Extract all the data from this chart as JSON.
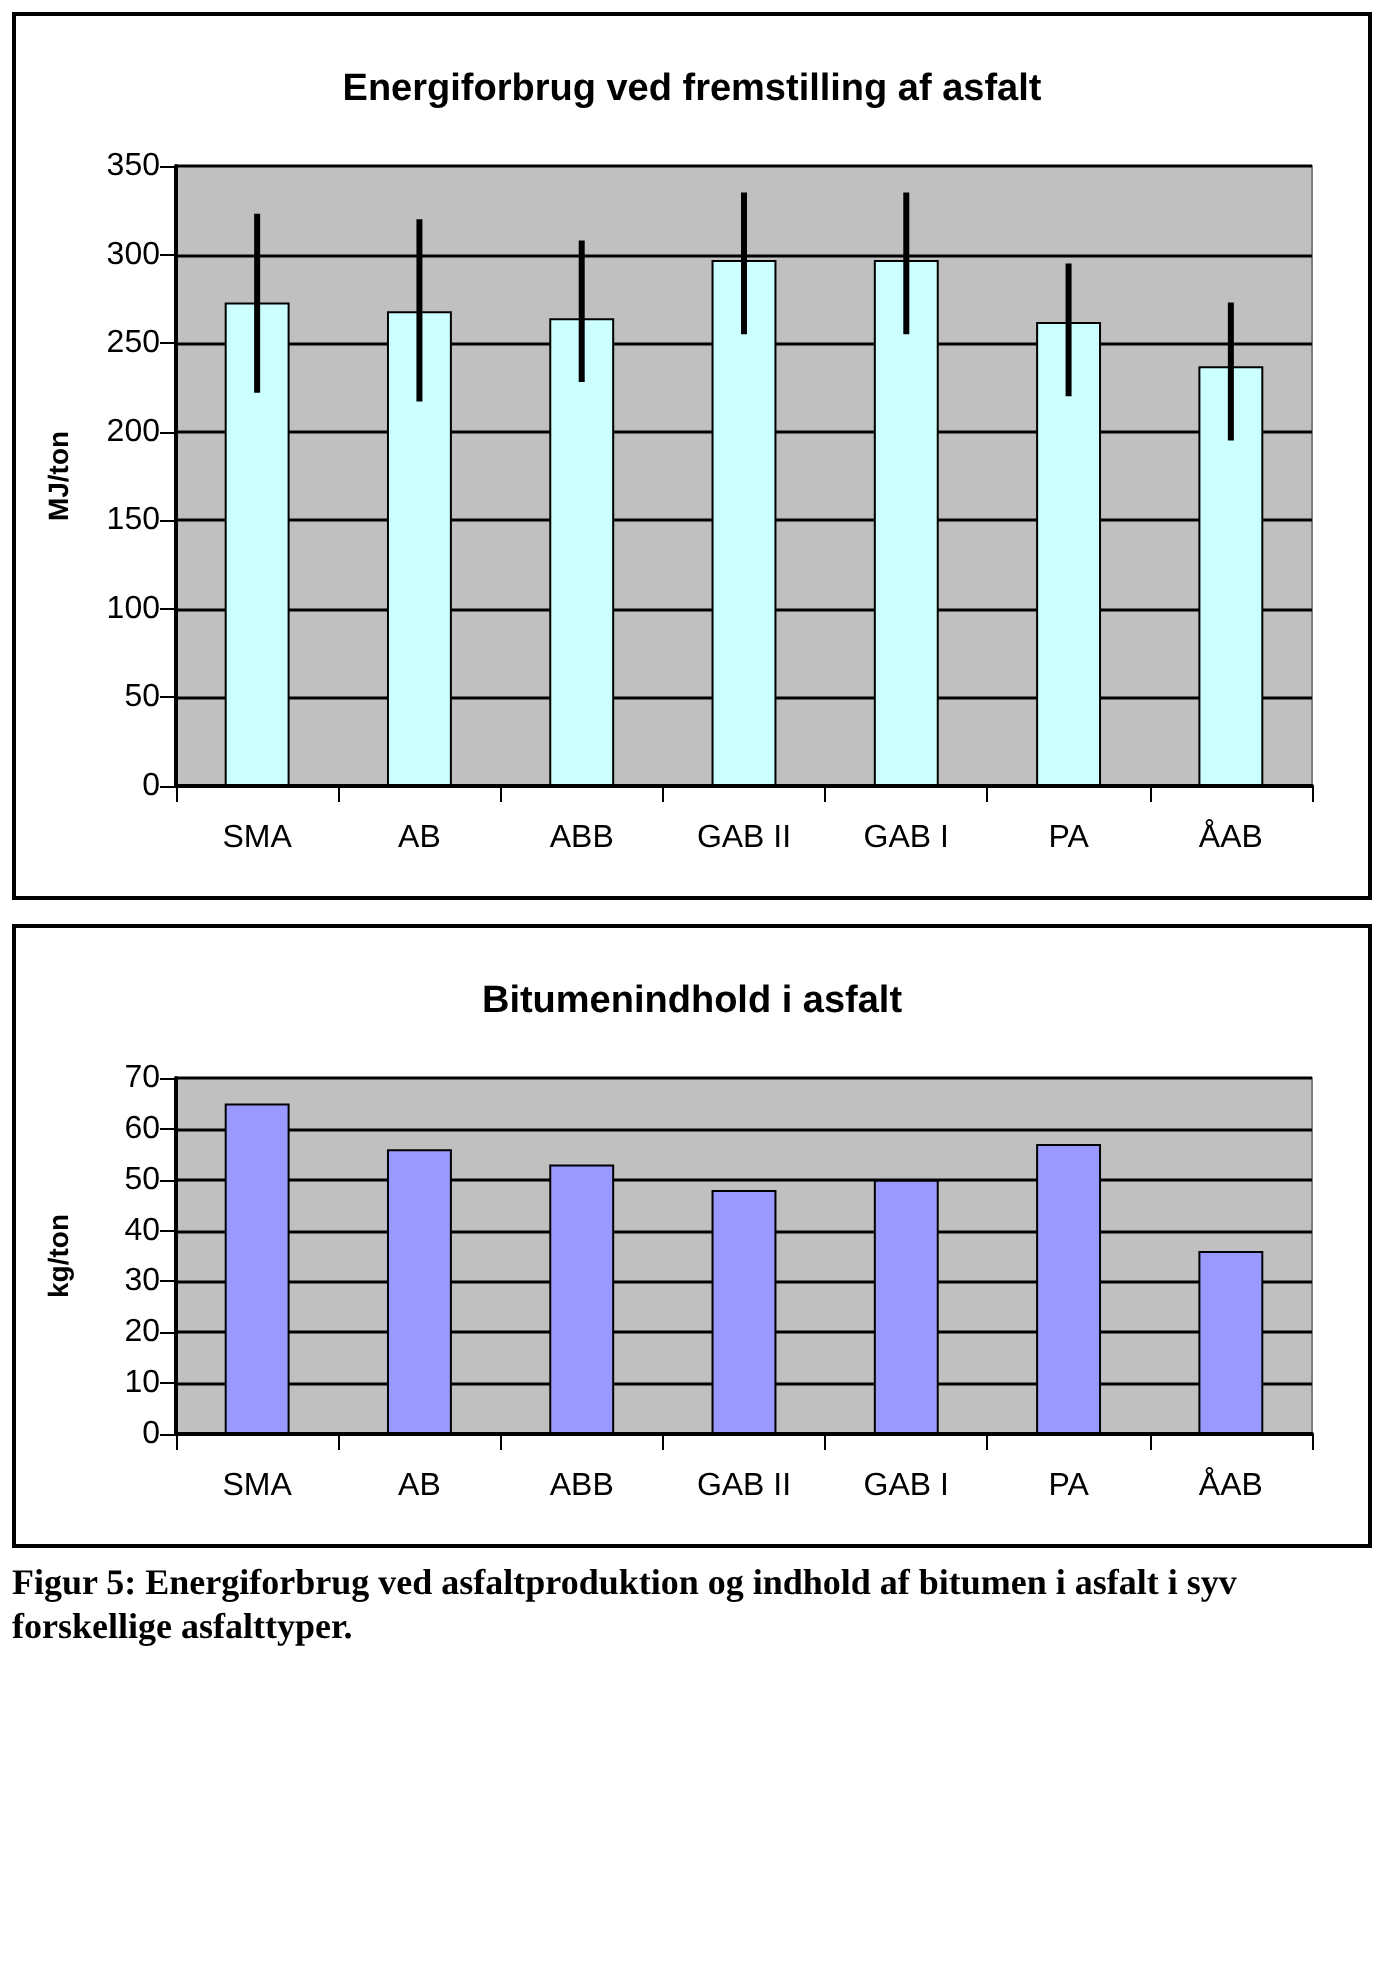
{
  "chart_data": [
    {
      "type": "bar",
      "title": "Energiforbrug ved fremstilling af asfalt",
      "ylabel": "MJ/ton",
      "categories": [
        "SMA",
        "AB",
        "ABB",
        "GAB II",
        "GAB I",
        "PA",
        "ÅAB"
      ],
      "values": [
        273,
        268,
        264,
        297,
        297,
        262,
        237
      ],
      "errors": [
        [
          222,
          323
        ],
        [
          217,
          320
        ],
        [
          228,
          308
        ],
        [
          255,
          335
        ],
        [
          255,
          335
        ],
        [
          220,
          295
        ],
        [
          195,
          273
        ]
      ],
      "color": "#ccffff",
      "ylim": [
        0,
        350
      ],
      "yticks": [
        0,
        50,
        100,
        150,
        200,
        250,
        300,
        350
      ],
      "grid": "y"
    },
    {
      "type": "bar",
      "title": "Bitumenindhold i asfalt",
      "ylabel": "kg/ton",
      "categories": [
        "SMA",
        "AB",
        "ABB",
        "GAB II",
        "GAB I",
        "PA",
        "ÅAB"
      ],
      "values": [
        65,
        56,
        53,
        48,
        50,
        57,
        36
      ],
      "color": "#9999ff",
      "ylim": [
        0,
        70
      ],
      "yticks": [
        0,
        10,
        20,
        30,
        40,
        50,
        60,
        70
      ],
      "grid": "y",
      "annotations": [
        "Figur 5: Energiforbrug ved asfaltproduktion og indhold af bitumen i asfalt i syv forskellige asfalttyper."
      ]
    }
  ]
}
